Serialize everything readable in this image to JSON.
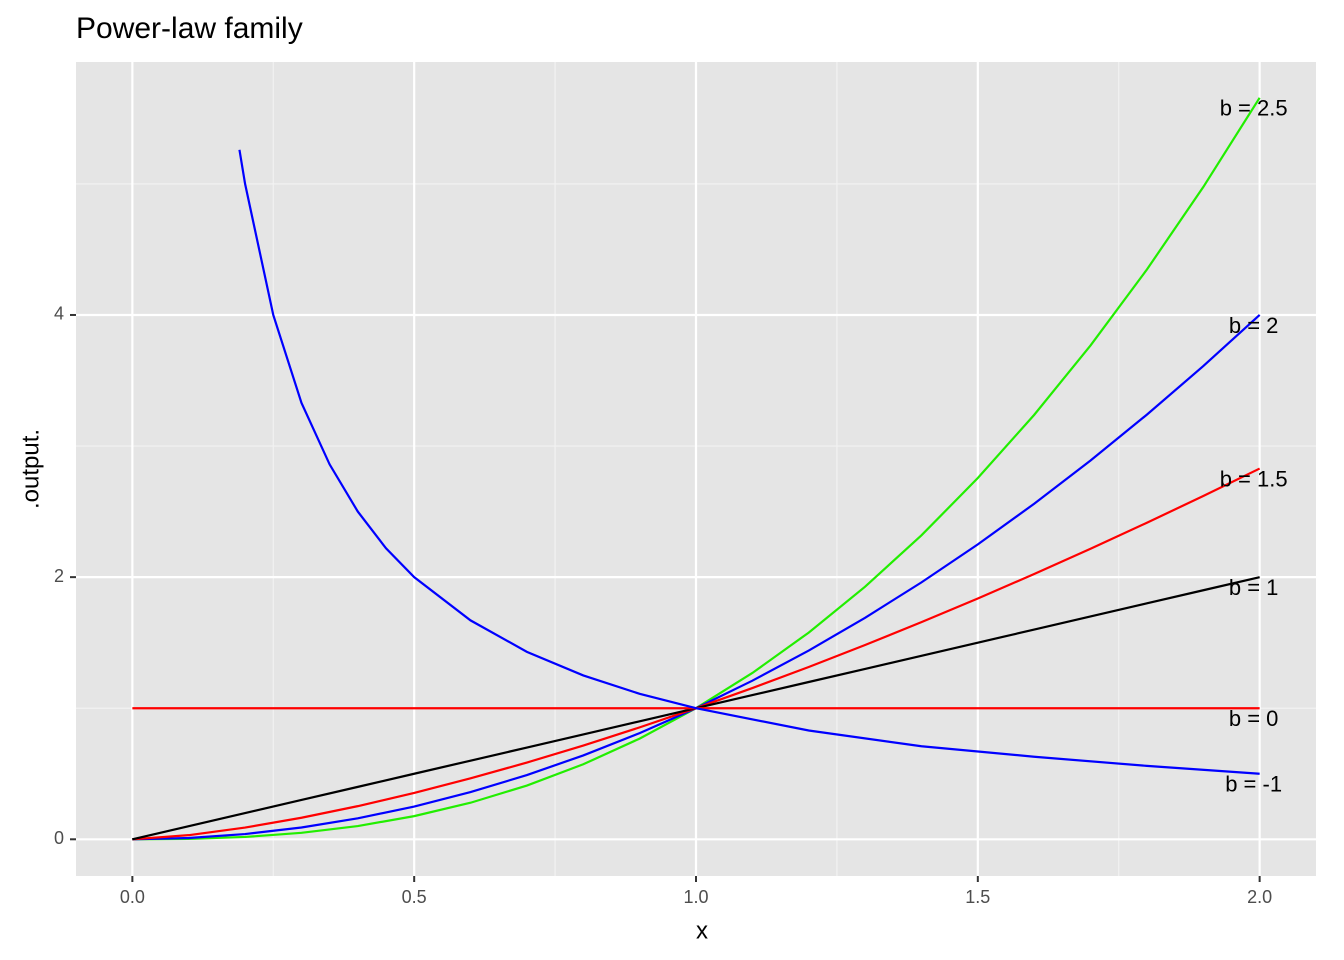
{
  "chart_data": {
    "type": "line",
    "title": "Power-law family",
    "x_label": "x",
    "y_label": ".output.",
    "x": [
      0,
      0.1,
      0.2,
      0.3,
      0.4,
      0.5,
      0.6,
      0.7,
      0.8,
      0.9,
      1,
      1.1,
      1.2,
      1.3,
      1.4,
      1.5,
      1.6,
      1.7,
      1.8,
      1.9,
      2
    ],
    "series": [
      {
        "name": "b = 2.5",
        "color": "#22ee00",
        "values": [
          0,
          0.0032,
          0.0179,
          0.0493,
          0.1012,
          0.1768,
          0.2789,
          0.41,
          0.5724,
          0.7684,
          1,
          1.269,
          1.577,
          1.927,
          2.319,
          2.756,
          3.238,
          3.768,
          4.347,
          4.976,
          5.657
        ]
      },
      {
        "name": "b = 2",
        "color": "#0000ff",
        "values": [
          0,
          0.01,
          0.04,
          0.09,
          0.16,
          0.25,
          0.36,
          0.49,
          0.64,
          0.81,
          1,
          1.21,
          1.44,
          1.69,
          1.96,
          2.25,
          2.56,
          2.89,
          3.24,
          3.61,
          4
        ]
      },
      {
        "name": "b = 1.5",
        "color": "#ff0000",
        "values": [
          0,
          0.0316,
          0.0894,
          0.1643,
          0.253,
          0.3536,
          0.4648,
          0.5857,
          0.7155,
          0.8538,
          1,
          1.1537,
          1.3145,
          1.4822,
          1.6565,
          1.8371,
          2.0239,
          2.2165,
          2.415,
          2.619,
          2.8284
        ]
      },
      {
        "name": "b = 1",
        "color": "#000000",
        "values": [
          0,
          0.1,
          0.2,
          0.3,
          0.4,
          0.5,
          0.6,
          0.7,
          0.8,
          0.9,
          1,
          1.1,
          1.2,
          1.3,
          1.4,
          1.5,
          1.6,
          1.7,
          1.8,
          1.9,
          2
        ]
      },
      {
        "name": "b = 0",
        "color": "#ff0000",
        "values": [
          1,
          1,
          1,
          1,
          1,
          1,
          1,
          1,
          1,
          1,
          1,
          1,
          1,
          1,
          1,
          1,
          1,
          1,
          1,
          1,
          1
        ]
      },
      {
        "name": "b = -1",
        "color": "#0000ff",
        "x": [
          0.19,
          0.2,
          0.25,
          0.3,
          0.35,
          0.4,
          0.45,
          0.5,
          0.6,
          0.7,
          0.8,
          0.9,
          1,
          1.2,
          1.4,
          1.6,
          1.8,
          2
        ],
        "values": [
          5.26,
          5,
          4,
          3.33,
          2.86,
          2.5,
          2.22,
          2,
          1.67,
          1.43,
          1.25,
          1.11,
          1,
          0.83,
          0.71,
          0.63,
          0.56,
          0.5
        ]
      }
    ],
    "xlim": [
      -0.1,
      2.1
    ],
    "ylim": [
      -0.28,
      5.93
    ],
    "xticks": [
      {
        "value": 0,
        "label": "0.0"
      },
      0.5,
      {
        "value": 1,
        "label": "1.0"
      },
      1.5,
      {
        "value": 2,
        "label": "2.0"
      }
    ],
    "yticks": [
      0,
      2,
      4
    ],
    "x_minor_grid": [
      0.25,
      0.75,
      1.25,
      1.75
    ],
    "y_minor_grid": [
      1,
      3,
      5
    ],
    "grid": true
  }
}
